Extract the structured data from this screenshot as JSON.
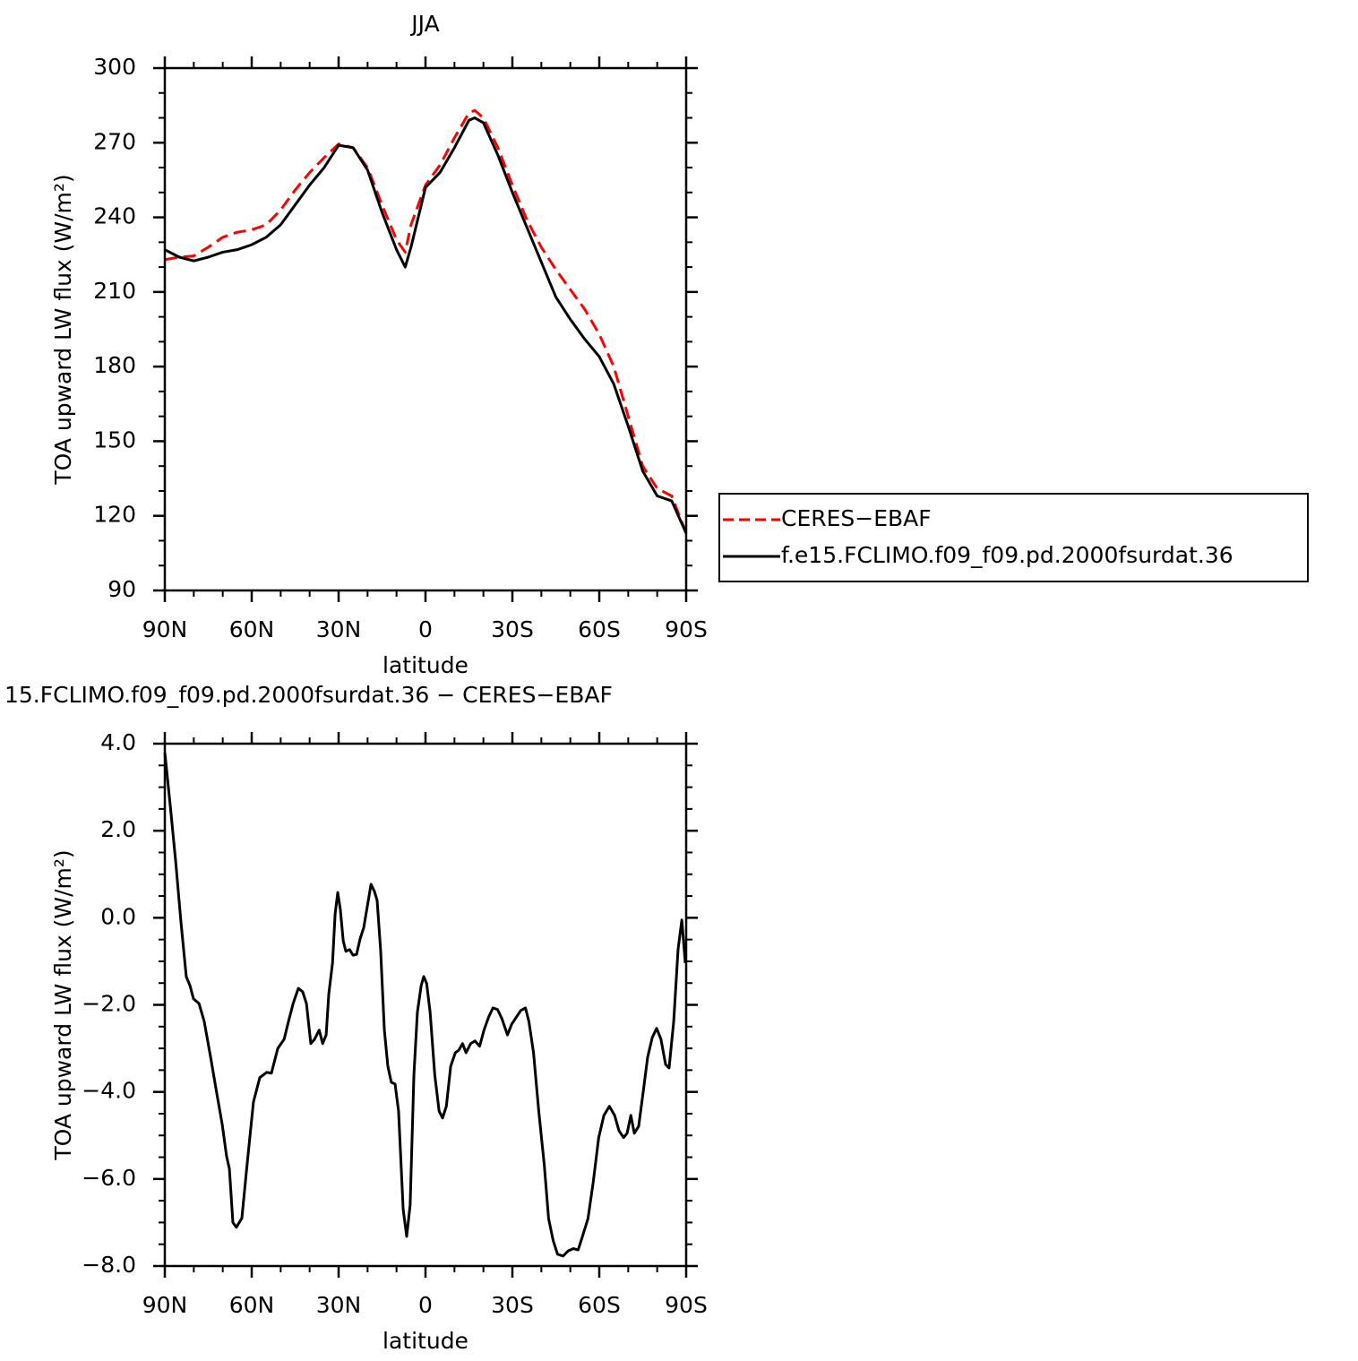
{
  "chart_data": [
    {
      "type": "line",
      "title": "JJA",
      "xlabel": "latitude",
      "ylabel": "TOA upward LW flux (W/m²)",
      "x": [
        90,
        85,
        80,
        75,
        70,
        65,
        60,
        55,
        50,
        45,
        40,
        35,
        30,
        25,
        20,
        15,
        10,
        7,
        5,
        0,
        -5,
        -10,
        -15,
        -17,
        -20,
        -25,
        -30,
        -35,
        -40,
        -45,
        -50,
        -55,
        -60,
        -65,
        -70,
        -75,
        -80,
        -85,
        -90
      ],
      "series": [
        {
          "name": "CERES−EBAF",
          "color": "#ff0000",
          "dashed": true,
          "values": [
            223,
            224,
            224.5,
            228,
            232,
            234,
            235,
            237,
            243,
            251,
            258,
            264,
            269.5,
            268,
            260,
            245,
            231,
            226,
            237,
            253,
            261,
            272,
            282,
            283,
            280,
            268,
            253,
            239,
            228,
            219,
            211,
            203,
            193,
            180,
            160,
            140,
            131,
            128,
            113
          ]
        },
        {
          "name": "f.e15.FCLIMO.f09_f09.pd.2000fsurdat.36",
          "color": "#000000",
          "dashed": false,
          "values": [
            227,
            224,
            222.5,
            224,
            226,
            227,
            229,
            232,
            237,
            245,
            253,
            260,
            269,
            268,
            259,
            242,
            227,
            220,
            228,
            252,
            258,
            268,
            279,
            280,
            278,
            265,
            250,
            236,
            222,
            208,
            199,
            191,
            184,
            173,
            156,
            138,
            128,
            126,
            113
          ]
        }
      ],
      "xlim": [
        90,
        -90
      ],
      "xticks": [
        {
          "value": 90,
          "label": "90N"
        },
        {
          "value": 60,
          "label": "60N"
        },
        {
          "value": 30,
          "label": "30N"
        },
        0,
        {
          "value": -30,
          "label": "30S"
        },
        {
          "value": -60,
          "label": "60S"
        },
        {
          "value": -90,
          "label": "90S"
        }
      ],
      "ylim": [
        90,
        300
      ],
      "yticks": [
        90,
        120,
        150,
        180,
        210,
        240,
        270,
        300
      ]
    },
    {
      "type": "line",
      "title": "15.FCLIMO.f09_f09.pd.2000fsurdat.36 − CERES−EBAF",
      "xlabel": "latitude",
      "ylabel": "TOA upward LW flux (W/m²)",
      "x": [
        90,
        88.1,
        86.3,
        84.4,
        82.6,
        81.3,
        80.1,
        78.2,
        76.4,
        74.2,
        72.1,
        70.2,
        68.7,
        67.7,
        66.5,
        65.3,
        63.4,
        61.6,
        59.4,
        57.2,
        54.8,
        53.2,
        51,
        48.8,
        47.3,
        45.7,
        43.9,
        42.4,
        41.1,
        39.6,
        38.3,
        36.7,
        35.5,
        34.3,
        33.4,
        32.1,
        31.2,
        30.3,
        29.4,
        28.4,
        27.5,
        26.2,
        25,
        23.8,
        22.6,
        21.3,
        20.1,
        18.8,
        17.6,
        16.7,
        15.5,
        14.2,
        13,
        11.8,
        10.5,
        9.3,
        7.7,
        6.5,
        5.3,
        4,
        2.8,
        1.5,
        0.6,
        -0.4,
        -1.6,
        -3.2,
        -4.7,
        -5.9,
        -7.2,
        -8.7,
        -10.3,
        -11.5,
        -12.8,
        -14,
        -15.6,
        -17.1,
        -18.7,
        -20.2,
        -21.8,
        -23.3,
        -24.9,
        -26.4,
        -28.3,
        -29.8,
        -31.4,
        -32.9,
        -34.5,
        -35.7,
        -37.3,
        -39.1,
        -41,
        -42.5,
        -44.1,
        -45.6,
        -47.5,
        -49.3,
        -51.1,
        -52.7,
        -54.2,
        -56.1,
        -57.9,
        -59.8,
        -61.6,
        -63.5,
        -65.3,
        -66.8,
        -68.4,
        -69.6,
        -70.9,
        -72.1,
        -73.6,
        -75.2,
        -76.7,
        -78.3,
        -79.8,
        -81.3,
        -82.9,
        -84.1,
        -85.7,
        -87.2,
        -88.5,
        -89.7
      ],
      "color": "#000000",
      "values": [
        3.8,
        2.56,
        1.33,
        -0.12,
        -1.35,
        -1.56,
        -1.86,
        -1.97,
        -2.38,
        -3.2,
        -4.02,
        -4.74,
        -5.47,
        -5.77,
        -7.0,
        -7.11,
        -6.9,
        -5.67,
        -4.23,
        -3.67,
        -3.55,
        -3.57,
        -3.0,
        -2.79,
        -2.38,
        -1.97,
        -1.62,
        -1.7,
        -1.97,
        -2.89,
        -2.79,
        -2.58,
        -2.89,
        -2.69,
        -1.76,
        -1.04,
        0.09,
        0.58,
        0.19,
        -0.53,
        -0.77,
        -0.73,
        -0.86,
        -0.84,
        -0.49,
        -0.22,
        0.26,
        0.77,
        0.6,
        0.4,
        -0.73,
        -2.58,
        -3.41,
        -3.78,
        -3.82,
        -4.44,
        -6.7,
        -7.32,
        -6.6,
        -3.61,
        -2.17,
        -1.56,
        -1.35,
        -1.51,
        -2.17,
        -3.61,
        -4.44,
        -4.6,
        -4.33,
        -3.41,
        -3.1,
        -3.04,
        -2.89,
        -3.1,
        -2.89,
        -2.83,
        -2.95,
        -2.58,
        -2.28,
        -2.07,
        -2.11,
        -2.32,
        -2.69,
        -2.44,
        -2.28,
        -2.13,
        -2.07,
        -2.38,
        -3.1,
        -4.44,
        -5.67,
        -6.91,
        -7.42,
        -7.73,
        -7.77,
        -7.65,
        -7.6,
        -7.63,
        -7.32,
        -6.91,
        -6.08,
        -5.05,
        -4.54,
        -4.33,
        -4.54,
        -4.89,
        -5.05,
        -4.95,
        -4.54,
        -4.95,
        -4.79,
        -3.98,
        -3.2,
        -2.75,
        -2.54,
        -2.79,
        -3.37,
        -3.45,
        -2.38,
        -0.73,
        -0.05,
        -1.04
      ],
      "xlim": [
        90,
        -90
      ],
      "xticks": [
        {
          "value": 90,
          "label": "90N"
        },
        {
          "value": 60,
          "label": "60N"
        },
        {
          "value": 30,
          "label": "30N"
        },
        0,
        {
          "value": -30,
          "label": "30S"
        },
        {
          "value": -60,
          "label": "60S"
        },
        {
          "value": -90,
          "label": "90S"
        }
      ],
      "ylim": [
        -8,
        4
      ],
      "yticks": [
        {
          "value": -8,
          "label": "−8.0"
        },
        {
          "value": -6,
          "label": "−6.0"
        },
        {
          "value": -4,
          "label": "−4.0"
        },
        {
          "value": -2,
          "label": "−2.0"
        },
        {
          "value": 0,
          "label": "0.0"
        },
        {
          "value": 2,
          "label": "2.0"
        },
        {
          "value": 4,
          "label": "4.0"
        }
      ]
    }
  ]
}
